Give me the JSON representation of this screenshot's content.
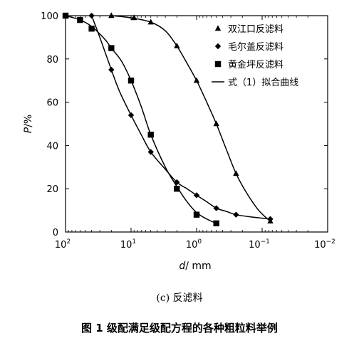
{
  "chart_data": {
    "type": "scatter",
    "xlabel_italic": "d",
    "xlabel_unit": "/ mm",
    "ylabel_italic": "P",
    "ylabel_unit": "/%",
    "x_scale": "log-reversed",
    "xlim": [
      100,
      0.01
    ],
    "ylim": [
      0,
      100
    ],
    "x_tick_base": "10",
    "x_tick_exponents": [
      "2",
      "1",
      "0",
      "−1",
      "−2"
    ],
    "x_ticks": [
      100,
      10,
      1,
      0.1,
      0.01
    ],
    "y_ticks": [
      0,
      20,
      40,
      60,
      80,
      100
    ],
    "legend": {
      "placement": "top-right",
      "fit_line_label": "式（1）拟合曲线"
    },
    "series": [
      {
        "name": "双江口反滤料",
        "marker": "triangle",
        "points": [
          {
            "x": 20,
            "y": 100
          },
          {
            "x": 9,
            "y": 99
          },
          {
            "x": 5,
            "y": 97
          },
          {
            "x": 2,
            "y": 86
          },
          {
            "x": 1,
            "y": 70
          },
          {
            "x": 0.5,
            "y": 50
          },
          {
            "x": 0.25,
            "y": 27
          },
          {
            "x": 0.075,
            "y": 5
          }
        ],
        "fit": [
          {
            "x": 20,
            "y": 100
          },
          {
            "x": 10,
            "y": 99
          },
          {
            "x": 5,
            "y": 97
          },
          {
            "x": 3,
            "y": 93
          },
          {
            "x": 2,
            "y": 86
          },
          {
            "x": 1.4,
            "y": 78
          },
          {
            "x": 1,
            "y": 70
          },
          {
            "x": 0.7,
            "y": 60
          },
          {
            "x": 0.5,
            "y": 50
          },
          {
            "x": 0.35,
            "y": 38
          },
          {
            "x": 0.25,
            "y": 27
          },
          {
            "x": 0.18,
            "y": 19
          },
          {
            "x": 0.12,
            "y": 11
          },
          {
            "x": 0.09,
            "y": 7
          },
          {
            "x": 0.075,
            "y": 5
          }
        ]
      },
      {
        "name": "毛尔盖反滤料",
        "marker": "diamond",
        "points": [
          {
            "x": 40,
            "y": 100
          },
          {
            "x": 20,
            "y": 75
          },
          {
            "x": 10,
            "y": 54
          },
          {
            "x": 5,
            "y": 37
          },
          {
            "x": 2,
            "y": 23
          },
          {
            "x": 1,
            "y": 17
          },
          {
            "x": 0.5,
            "y": 11
          },
          {
            "x": 0.25,
            "y": 8
          },
          {
            "x": 0.075,
            "y": 6
          }
        ],
        "fit": [
          {
            "x": 40,
            "y": 100
          },
          {
            "x": 30,
            "y": 90
          },
          {
            "x": 20,
            "y": 75
          },
          {
            "x": 15,
            "y": 65
          },
          {
            "x": 10,
            "y": 54
          },
          {
            "x": 7,
            "y": 45
          },
          {
            "x": 5,
            "y": 37
          },
          {
            "x": 3,
            "y": 29
          },
          {
            "x": 2,
            "y": 23
          },
          {
            "x": 1.4,
            "y": 20
          },
          {
            "x": 1,
            "y": 17
          },
          {
            "x": 0.7,
            "y": 14
          },
          {
            "x": 0.5,
            "y": 11
          },
          {
            "x": 0.35,
            "y": 9.5
          },
          {
            "x": 0.25,
            "y": 8
          },
          {
            "x": 0.15,
            "y": 7
          },
          {
            "x": 0.075,
            "y": 6
          }
        ]
      },
      {
        "name": "黄金坪反滤料",
        "marker": "square",
        "points": [
          {
            "x": 100,
            "y": 100
          },
          {
            "x": 60,
            "y": 98
          },
          {
            "x": 40,
            "y": 94
          },
          {
            "x": 20,
            "y": 85
          },
          {
            "x": 10,
            "y": 70
          },
          {
            "x": 5,
            "y": 45
          },
          {
            "x": 2,
            "y": 20
          },
          {
            "x": 1,
            "y": 8
          },
          {
            "x": 0.5,
            "y": 4
          }
        ],
        "fit": [
          {
            "x": 100,
            "y": 100
          },
          {
            "x": 60,
            "y": 98
          },
          {
            "x": 40,
            "y": 95
          },
          {
            "x": 25,
            "y": 89
          },
          {
            "x": 20,
            "y": 85
          },
          {
            "x": 14,
            "y": 79
          },
          {
            "x": 10,
            "y": 70
          },
          {
            "x": 7,
            "y": 58
          },
          {
            "x": 5,
            "y": 45
          },
          {
            "x": 3,
            "y": 30
          },
          {
            "x": 2,
            "y": 21
          },
          {
            "x": 1.4,
            "y": 14
          },
          {
            "x": 1,
            "y": 9
          },
          {
            "x": 0.7,
            "y": 6
          },
          {
            "x": 0.5,
            "y": 4
          }
        ]
      }
    ]
  },
  "captions": {
    "sub": "(c)  反滤料",
    "figure": "图 1    级配满足级配方程的各种粗粒料举例"
  },
  "colors": {
    "ink": "#000000",
    "background": "#ffffff"
  }
}
